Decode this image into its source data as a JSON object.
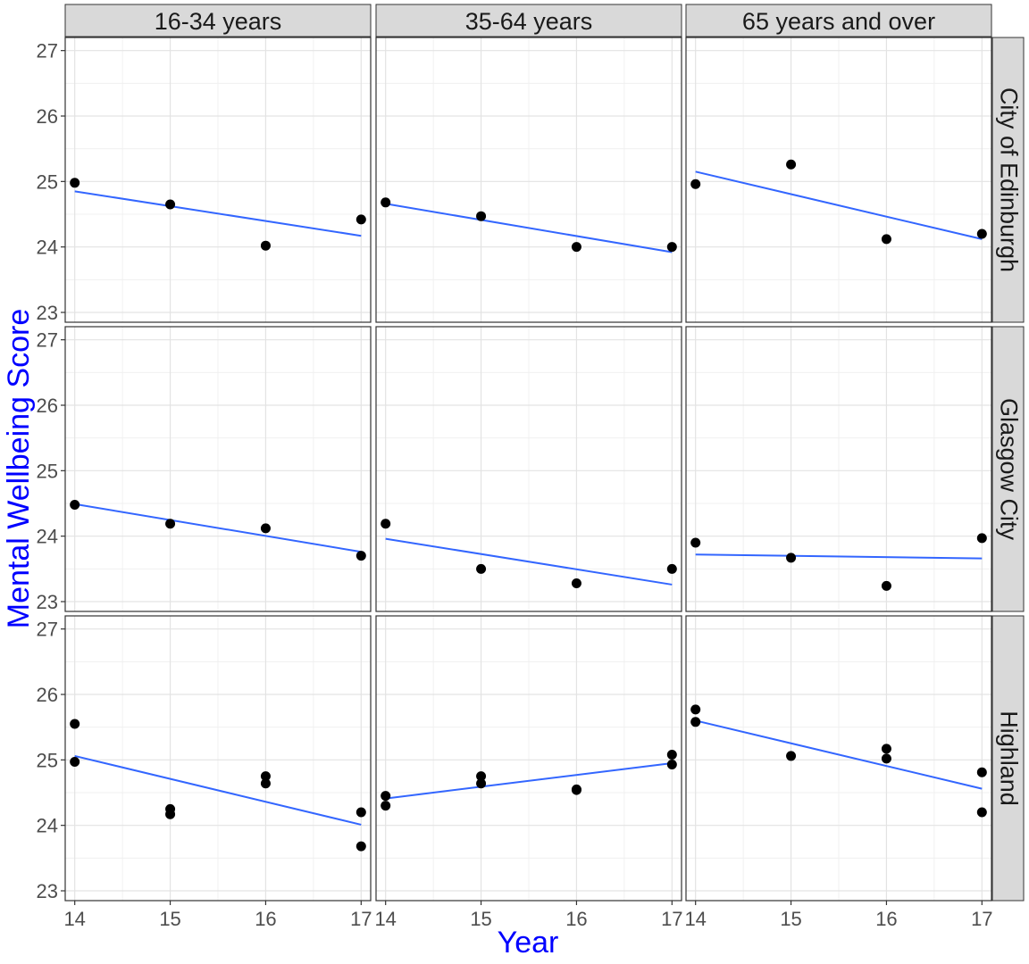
{
  "chart_data": {
    "type": "scatter",
    "ylabel": "Mental Wellbeing Score",
    "xlabel": "Year",
    "axis_title_color": "#0000ff",
    "trend_color": "#3366ff",
    "point_color": "#000000",
    "strip_fill": "#d9d9d9",
    "grid": true,
    "xlim": [
      13.9,
      17.1
    ],
    "ylim": [
      22.85,
      27.2
    ],
    "xticks": [
      14,
      15,
      16,
      17
    ],
    "yticks": [
      23,
      24,
      25,
      26,
      27
    ],
    "columns": [
      "16-34 years",
      "35-64 years",
      "65 years and over"
    ],
    "rows": [
      "City of Edinburgh",
      "Glasgow City",
      "Highland"
    ],
    "panels": [
      {
        "row": "City of Edinburgh",
        "column": "16-34 years",
        "points": [
          [
            14,
            24.98
          ],
          [
            15,
            24.65
          ],
          [
            16,
            24.02
          ],
          [
            17,
            24.42
          ]
        ],
        "trend": [
          [
            14,
            24.85
          ],
          [
            17,
            24.17
          ]
        ]
      },
      {
        "row": "City of Edinburgh",
        "column": "35-64 years",
        "points": [
          [
            14,
            24.68
          ],
          [
            15,
            24.47
          ],
          [
            16,
            24.0
          ],
          [
            17,
            24.0
          ]
        ],
        "trend": [
          [
            14,
            24.66
          ],
          [
            17,
            23.92
          ]
        ]
      },
      {
        "row": "City of Edinburgh",
        "column": "65 years and over",
        "points": [
          [
            14,
            24.96
          ],
          [
            15,
            25.26
          ],
          [
            16,
            24.12
          ],
          [
            17,
            24.2
          ]
        ],
        "trend": [
          [
            14,
            25.15
          ],
          [
            17,
            24.12
          ]
        ]
      },
      {
        "row": "Glasgow City",
        "column": "16-34 years",
        "points": [
          [
            14,
            24.48
          ],
          [
            15,
            24.19
          ],
          [
            16,
            24.12
          ],
          [
            17,
            23.7
          ]
        ],
        "trend": [
          [
            14,
            24.49
          ],
          [
            17,
            23.76
          ]
        ]
      },
      {
        "row": "Glasgow City",
        "column": "35-64 years",
        "points": [
          [
            14,
            24.19
          ],
          [
            15,
            23.5
          ],
          [
            16,
            23.28
          ],
          [
            17,
            23.5
          ]
        ],
        "trend": [
          [
            14,
            23.96
          ],
          [
            17,
            23.26
          ]
        ]
      },
      {
        "row": "Glasgow City",
        "column": "65 years and over",
        "points": [
          [
            14,
            23.9
          ],
          [
            15,
            23.67
          ],
          [
            16,
            23.24
          ],
          [
            17,
            23.97
          ]
        ],
        "trend": [
          [
            14,
            23.72
          ],
          [
            17,
            23.66
          ]
        ]
      },
      {
        "row": "Highland",
        "column": "16-34 years",
        "points": [
          [
            14,
            25.55
          ],
          [
            14,
            24.97
          ],
          [
            15,
            24.25
          ],
          [
            15,
            24.17
          ],
          [
            16,
            24.75
          ],
          [
            16,
            24.64
          ],
          [
            17,
            24.2
          ],
          [
            17,
            23.68
          ]
        ],
        "trend": [
          [
            14,
            25.06
          ],
          [
            17,
            24.01
          ]
        ]
      },
      {
        "row": "Highland",
        "column": "35-64 years",
        "points": [
          [
            14,
            24.45
          ],
          [
            14,
            24.3
          ],
          [
            15,
            24.75
          ],
          [
            15,
            24.64
          ],
          [
            16,
            24.55
          ],
          [
            16,
            24.54
          ],
          [
            17,
            25.08
          ],
          [
            17,
            24.93
          ]
        ],
        "trend": [
          [
            14,
            24.41
          ],
          [
            17,
            24.95
          ]
        ]
      },
      {
        "row": "Highland",
        "column": "65 years and over",
        "points": [
          [
            14,
            25.77
          ],
          [
            14,
            25.58
          ],
          [
            15,
            25.06
          ],
          [
            16,
            25.17
          ],
          [
            16,
            25.02
          ],
          [
            17,
            24.81
          ],
          [
            17,
            24.2
          ]
        ],
        "trend": [
          [
            14,
            25.6
          ],
          [
            17,
            24.56
          ]
        ]
      }
    ]
  }
}
